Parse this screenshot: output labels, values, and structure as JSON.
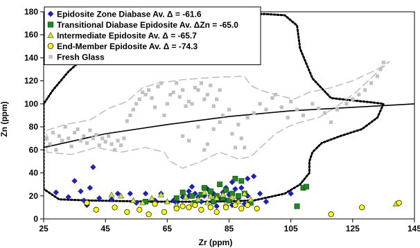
{
  "chart_data": {
    "type": "scatter",
    "title": "",
    "xlabel": "Zr (ppm)",
    "ylabel": "Zn (ppm)",
    "xlim": [
      25,
      145
    ],
    "ylim": [
      0,
      180
    ],
    "xticks": [
      25,
      45,
      65,
      85,
      105,
      125,
      145
    ],
    "yticks": [
      0,
      20,
      40,
      60,
      80,
      100,
      120,
      140,
      160,
      180
    ],
    "xtick_labels": [
      "25",
      "45",
      "65",
      "85",
      "105",
      "125",
      "145"
    ],
    "ytick_labels": [
      "0",
      "20",
      "40",
      "60",
      "80",
      "100",
      "120",
      "140",
      "160",
      "180"
    ],
    "grid": false,
    "legend_position": "top-left",
    "series": [
      {
        "name": "Epidosite Zone Diabase Av. Δ = -61.6",
        "marker": "diamond",
        "color": "#1f1fbf",
        "edge": "#1f1fbf",
        "points": [
          [
            29,
            23
          ],
          [
            33,
            19
          ],
          [
            35,
            33
          ],
          [
            37,
            24
          ],
          [
            38,
            16
          ],
          [
            39,
            12
          ],
          [
            40,
            27
          ],
          [
            41,
            45
          ],
          [
            43,
            18
          ],
          [
            47,
            17
          ],
          [
            49,
            22
          ],
          [
            53,
            22
          ],
          [
            55,
            14
          ],
          [
            58,
            22
          ],
          [
            61,
            16
          ],
          [
            63,
            22
          ],
          [
            67,
            16
          ],
          [
            68,
            14
          ],
          [
            70,
            19
          ],
          [
            72,
            24
          ],
          [
            73,
            28
          ],
          [
            74,
            22
          ],
          [
            75,
            19
          ],
          [
            77,
            20
          ],
          [
            78,
            26
          ],
          [
            80,
            22
          ],
          [
            81,
            11
          ],
          [
            82,
            17
          ],
          [
            83,
            23
          ],
          [
            84,
            16
          ],
          [
            85,
            21
          ],
          [
            86,
            12
          ],
          [
            87,
            26
          ],
          [
            88,
            18
          ],
          [
            89,
            27
          ],
          [
            90,
            13
          ],
          [
            91,
            20
          ],
          [
            93,
            37
          ],
          [
            95,
            22
          ],
          [
            97,
            15
          ],
          [
            105,
            22
          ],
          [
            72,
            20
          ],
          [
            76,
            15
          ],
          [
            79,
            20
          ],
          [
            84,
            27
          ],
          [
            86,
            32
          ],
          [
            88,
            19
          ],
          [
            91,
            35
          ]
        ]
      },
      {
        "name": "Transitional Diabase Epidosite Av. ΔZn = -65.0",
        "marker": "square",
        "color": "#1f8a1f",
        "edge": "#0b4a0b",
        "points": [
          [
            58,
            15
          ],
          [
            68,
            18
          ],
          [
            70,
            23
          ],
          [
            73,
            20
          ],
          [
            74,
            14
          ],
          [
            76,
            21
          ],
          [
            77,
            27
          ],
          [
            79,
            24
          ],
          [
            80,
            15
          ],
          [
            81,
            20
          ],
          [
            82,
            30
          ],
          [
            83,
            18
          ],
          [
            84,
            25
          ],
          [
            85,
            16
          ],
          [
            86,
            22
          ],
          [
            87,
            35
          ],
          [
            88,
            20
          ],
          [
            89,
            33
          ],
          [
            90,
            22
          ],
          [
            92,
            14
          ],
          [
            107,
            11
          ],
          [
            109,
            27
          ],
          [
            110,
            28
          ]
        ]
      },
      {
        "name": "Intermediate Epidosite Av. Δ = -65.7",
        "marker": "triangle",
        "color": "#c8e83a",
        "edge": "#556b00",
        "points": [
          [
            47,
            21
          ],
          [
            50,
            20
          ],
          [
            54,
            16
          ],
          [
            57,
            14
          ],
          [
            60,
            18
          ],
          [
            63,
            21
          ],
          [
            65,
            15
          ],
          [
            68,
            12
          ],
          [
            71,
            19
          ],
          [
            73,
            13
          ],
          [
            75,
            17
          ],
          [
            77,
            23
          ],
          [
            78,
            14
          ],
          [
            79,
            20
          ],
          [
            81,
            18
          ],
          [
            83,
            21
          ],
          [
            84,
            13
          ],
          [
            86,
            19
          ],
          [
            88,
            15
          ],
          [
            90,
            22
          ],
          [
            92,
            17
          ],
          [
            139,
            13
          ]
        ]
      },
      {
        "name": "End-Member Epidosite Av. Δ = -74.3",
        "marker": "circle",
        "color": "#ffff00",
        "edge": "#000000",
        "points": [
          [
            39,
            14
          ],
          [
            42,
            8
          ],
          [
            48,
            10
          ],
          [
            52,
            6
          ],
          [
            56,
            8
          ],
          [
            59,
            4
          ],
          [
            61,
            13
          ],
          [
            64,
            6
          ],
          [
            68,
            9
          ],
          [
            70,
            11
          ],
          [
            72,
            10
          ],
          [
            74,
            12
          ],
          [
            76,
            8
          ],
          [
            79,
            10
          ],
          [
            81,
            6
          ],
          [
            84,
            10
          ],
          [
            87,
            12
          ],
          [
            89,
            9
          ],
          [
            91,
            12
          ],
          [
            94,
            9
          ],
          [
            118,
            4
          ],
          [
            128,
            10
          ],
          [
            140,
            14
          ]
        ]
      },
      {
        "name": "Fresh Glass",
        "marker": "small-square",
        "color": "#c0c0c0",
        "edge": "#c0c0c0",
        "points": [
          [
            26,
            70
          ],
          [
            27,
            65
          ],
          [
            28,
            75
          ],
          [
            29,
            60
          ],
          [
            30,
            72
          ],
          [
            31,
            68
          ],
          [
            32,
            80
          ],
          [
            33,
            70
          ],
          [
            34,
            63
          ],
          [
            35,
            75
          ],
          [
            36,
            78
          ],
          [
            37,
            68
          ],
          [
            38,
            72
          ],
          [
            39,
            66
          ],
          [
            40,
            77
          ],
          [
            41,
            70
          ],
          [
            42,
            73
          ],
          [
            43,
            64
          ],
          [
            44,
            70
          ],
          [
            45,
            67
          ],
          [
            46,
            72
          ],
          [
            47,
            65
          ],
          [
            48,
            60
          ],
          [
            49,
            68
          ],
          [
            50,
            64
          ],
          [
            51,
            70
          ],
          [
            52,
            85
          ],
          [
            53,
            90
          ],
          [
            54,
            95
          ],
          [
            55,
            100
          ],
          [
            56,
            104
          ],
          [
            57,
            110
          ],
          [
            58,
            108
          ],
          [
            59,
            112
          ],
          [
            60,
            105
          ],
          [
            61,
            97
          ],
          [
            62,
            115
          ],
          [
            63,
            118
          ],
          [
            64,
            90
          ],
          [
            65,
            100
          ],
          [
            66,
            108
          ],
          [
            67,
            110
          ],
          [
            68,
            118
          ],
          [
            69,
            106
          ],
          [
            70,
            112
          ],
          [
            71,
            98
          ],
          [
            72,
            102
          ],
          [
            73,
            100
          ],
          [
            74,
            114
          ],
          [
            75,
            112
          ],
          [
            76,
            118
          ],
          [
            77,
            104
          ],
          [
            78,
            108
          ],
          [
            79,
            116
          ],
          [
            80,
            98
          ],
          [
            81,
            104
          ],
          [
            82,
            112
          ],
          [
            70,
            72
          ],
          [
            72,
            68
          ],
          [
            75,
            80
          ],
          [
            77,
            60
          ],
          [
            78,
            65
          ],
          [
            80,
            78
          ],
          [
            82,
            84
          ],
          [
            83,
            90
          ],
          [
            85,
            95
          ],
          [
            86,
            74
          ],
          [
            87,
            62
          ],
          [
            88,
            82
          ],
          [
            89,
            70
          ],
          [
            90,
            62
          ],
          [
            91,
            88
          ],
          [
            93,
            92
          ],
          [
            95,
            100
          ],
          [
            97,
            95
          ],
          [
            99,
            105
          ],
          [
            100,
            108
          ],
          [
            102,
            97
          ],
          [
            104,
            88
          ],
          [
            105,
            102
          ],
          [
            107,
            95
          ],
          [
            109,
            90
          ],
          [
            112,
            100
          ],
          [
            114,
            96
          ],
          [
            116,
            92
          ],
          [
            118,
            84
          ],
          [
            120,
            95
          ],
          [
            123,
            100
          ],
          [
            125,
            104
          ],
          [
            127,
            108
          ],
          [
            129,
            112
          ],
          [
            131,
            118
          ],
          [
            133,
            124
          ],
          [
            134,
            130
          ],
          [
            135,
            136
          ]
        ]
      }
    ],
    "regression_line": {
      "style": "solid",
      "color": "#000000",
      "points": [
        [
          25,
          62
        ],
        [
          45,
          74
        ],
        [
          65,
          82
        ],
        [
          85,
          89
        ],
        [
          105,
          94
        ],
        [
          125,
          97
        ],
        [
          145,
          100
        ]
      ]
    },
    "envelopes": [
      {
        "name": "altered-field",
        "style": "dotted",
        "color": "#000000",
        "points": [
          [
            25,
            26
          ],
          [
            25,
            100
          ],
          [
            28,
            112
          ],
          [
            33,
            128
          ],
          [
            38,
            140
          ],
          [
            44,
            152
          ],
          [
            51,
            163
          ],
          [
            58,
            170
          ],
          [
            66,
            174
          ],
          [
            74,
            176
          ],
          [
            82,
            177
          ],
          [
            90,
            178
          ],
          [
            97,
            178
          ],
          [
            103,
            177
          ],
          [
            107,
            168
          ],
          [
            108,
            148
          ],
          [
            112,
            122
          ],
          [
            118,
            105
          ],
          [
            125,
            103
          ],
          [
            132,
            101
          ],
          [
            135,
            100
          ],
          [
            133,
            88
          ],
          [
            128,
            78
          ],
          [
            121,
            72
          ],
          [
            115,
            66
          ],
          [
            112,
            58
          ],
          [
            111,
            50
          ],
          [
            111,
            40
          ],
          [
            108,
            30
          ],
          [
            103,
            22
          ],
          [
            93,
            16
          ],
          [
            80,
            15
          ],
          [
            60,
            15
          ],
          [
            40,
            16
          ],
          [
            30,
            17
          ],
          [
            25,
            26
          ]
        ]
      },
      {
        "name": "fresh-glass-field",
        "style": "dashed",
        "color": "#c0c0c0",
        "points": [
          [
            26,
            58
          ],
          [
            26,
            77
          ],
          [
            32,
            82
          ],
          [
            40,
            86
          ],
          [
            46,
            96
          ],
          [
            52,
            102
          ],
          [
            57,
            114
          ],
          [
            62,
            118
          ],
          [
            70,
            121
          ],
          [
            80,
            123
          ],
          [
            90,
            124
          ],
          [
            92,
            116
          ],
          [
            95,
            112
          ],
          [
            100,
            108
          ],
          [
            106,
            104
          ],
          [
            111,
            110
          ],
          [
            118,
            114
          ],
          [
            125,
            120
          ],
          [
            133,
            130
          ],
          [
            137,
            137
          ],
          [
            132,
            125
          ],
          [
            126,
            110
          ],
          [
            120,
            98
          ],
          [
            114,
            88
          ],
          [
            108,
            84
          ],
          [
            104,
            80
          ],
          [
            100,
            74
          ],
          [
            96,
            64
          ],
          [
            92,
            54
          ],
          [
            88,
            52
          ],
          [
            82,
            58
          ],
          [
            76,
            50
          ],
          [
            70,
            44
          ],
          [
            66,
            50
          ],
          [
            64,
            58
          ],
          [
            58,
            62
          ],
          [
            50,
            58
          ],
          [
            42,
            62
          ],
          [
            34,
            56
          ],
          [
            26,
            58
          ]
        ]
      }
    ]
  }
}
